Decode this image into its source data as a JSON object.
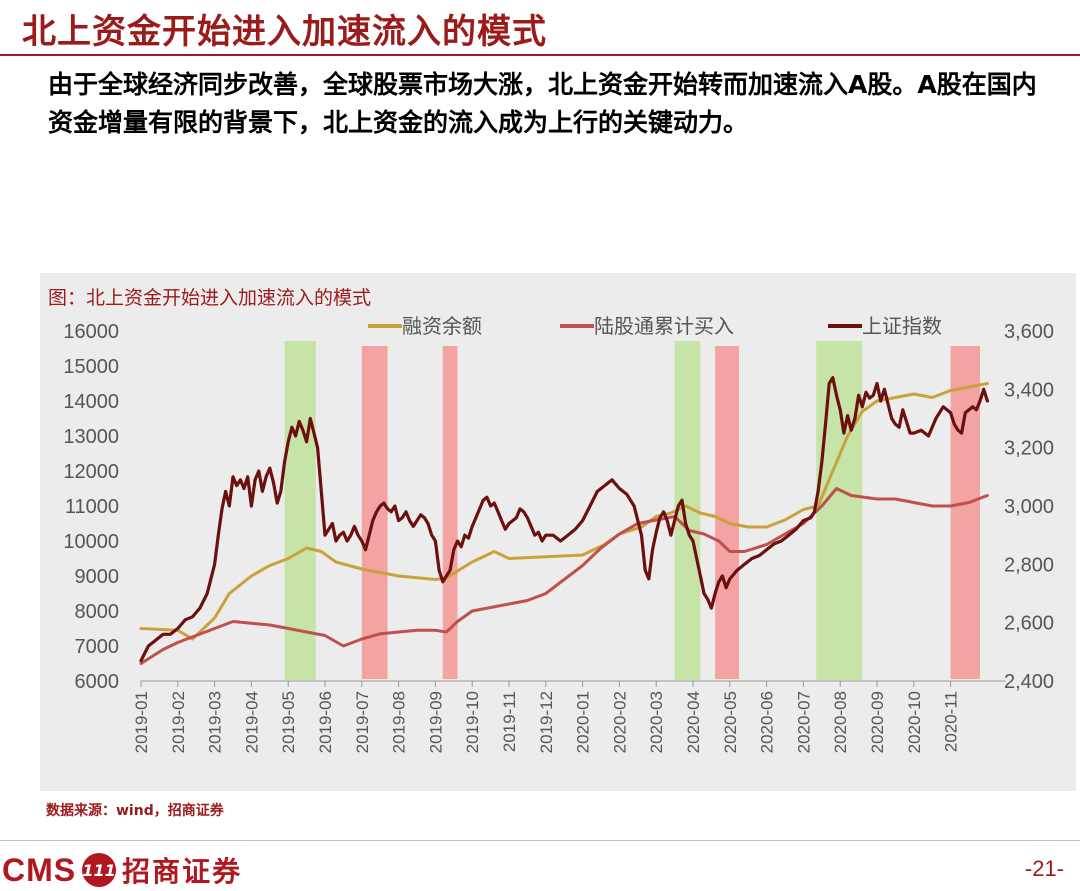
{
  "slide": {
    "title": "北上资金开始进入加速流入的模式",
    "subtitle": "由于全球经济同步改善，全球股票市场大涨，北上资金开始转而加速流入A股。A股在国内资金增量有限的背景下，北上资金的流入成为上行的关键动力。",
    "source": "数据来源：wind，招商证券",
    "page_number": "-21-",
    "logo_text": "CMS",
    "logo_badge": "111",
    "logo_cn": "招商证券"
  },
  "chart_data": {
    "type": "line",
    "title": "图：北上资金开始进入加速流入的模式",
    "x_categories": [
      "2019-01",
      "2019-02",
      "2019-03",
      "2019-04",
      "2019-05",
      "2019-06",
      "2019-07",
      "2019-08",
      "2019-09",
      "2019-10",
      "2019-11",
      "2019-12",
      "2020-01",
      "2020-02",
      "2020-03",
      "2020-04",
      "2020-05",
      "2020-06",
      "2020-07",
      "2020-08",
      "2020-09",
      "2020-10",
      "2020-11"
    ],
    "y_left": {
      "min": 6000,
      "max": 16000,
      "ticks": [
        "6000",
        "7000",
        "8000",
        "9000",
        "10000",
        "11000",
        "12000",
        "13000",
        "14000",
        "15000",
        "16000"
      ]
    },
    "y_right": {
      "min": 2400,
      "max": 3600,
      "ticks": [
        "2,400",
        "2,600",
        "2,800",
        "3,000",
        "3,200",
        "3,400",
        "3,600"
      ]
    },
    "grid": false,
    "legend_position": "top",
    "colors": {
      "margin": "#c9a23a",
      "northbound": "#c0504d",
      "index": "#6b0f0f",
      "green_band": "#c6e3a8",
      "red_band": "#f4a3a3",
      "background": "#ececec"
    },
    "highlight_bands": [
      {
        "color": "green",
        "from": 3.9,
        "to": 4.75
      },
      {
        "color": "red",
        "from": 6.0,
        "to": 6.7
      },
      {
        "color": "red",
        "from": 8.2,
        "to": 8.6
      },
      {
        "color": "green",
        "from": 14.5,
        "to": 15.2
      },
      {
        "color": "red",
        "from": 15.6,
        "to": 16.25
      },
      {
        "color": "green",
        "from": 18.35,
        "to": 19.6
      },
      {
        "color": "red",
        "from": 22.0,
        "to": 22.8
      }
    ],
    "series": [
      {
        "name": "融资余额",
        "axis": "left",
        "points": [
          [
            0.0,
            7500
          ],
          [
            1.0,
            7450
          ],
          [
            1.4,
            7200
          ],
          [
            2.0,
            7800
          ],
          [
            2.4,
            8500
          ],
          [
            3.0,
            9000
          ],
          [
            3.5,
            9300
          ],
          [
            4.0,
            9500
          ],
          [
            4.5,
            9800
          ],
          [
            4.9,
            9700
          ],
          [
            5.3,
            9400
          ],
          [
            6.0,
            9200
          ],
          [
            7.0,
            9000
          ],
          [
            8.0,
            8900
          ],
          [
            8.3,
            8950
          ],
          [
            9.0,
            9400
          ],
          [
            9.6,
            9700
          ],
          [
            10.0,
            9500
          ],
          [
            11.0,
            9550
          ],
          [
            12.0,
            9600
          ],
          [
            12.6,
            9900
          ],
          [
            13.0,
            10200
          ],
          [
            13.6,
            10400
          ],
          [
            14.0,
            10700
          ],
          [
            14.4,
            10800
          ],
          [
            14.8,
            11000
          ],
          [
            15.2,
            10800
          ],
          [
            15.6,
            10700
          ],
          [
            16.0,
            10500
          ],
          [
            16.5,
            10400
          ],
          [
            17.0,
            10400
          ],
          [
            17.5,
            10600
          ],
          [
            18.0,
            10900
          ],
          [
            18.4,
            11000
          ],
          [
            18.8,
            12000
          ],
          [
            19.2,
            13000
          ],
          [
            19.6,
            13700
          ],
          [
            20.0,
            14000
          ],
          [
            20.5,
            14100
          ],
          [
            21.0,
            14200
          ],
          [
            21.5,
            14100
          ],
          [
            22.0,
            14300
          ],
          [
            22.5,
            14400
          ],
          [
            23.0,
            14500
          ]
        ]
      },
      {
        "name": "陆股通累计买入",
        "axis": "left",
        "points": [
          [
            0.0,
            6500
          ],
          [
            0.6,
            6900
          ],
          [
            1.0,
            7100
          ],
          [
            1.5,
            7300
          ],
          [
            2.0,
            7500
          ],
          [
            2.5,
            7700
          ],
          [
            3.0,
            7650
          ],
          [
            3.5,
            7600
          ],
          [
            4.0,
            7500
          ],
          [
            4.5,
            7400
          ],
          [
            5.0,
            7300
          ],
          [
            5.5,
            7000
          ],
          [
            6.0,
            7200
          ],
          [
            6.5,
            7350
          ],
          [
            7.0,
            7400
          ],
          [
            7.5,
            7450
          ],
          [
            8.0,
            7450
          ],
          [
            8.3,
            7400
          ],
          [
            8.6,
            7700
          ],
          [
            9.0,
            8000
          ],
          [
            10.0,
            8200
          ],
          [
            10.5,
            8300
          ],
          [
            11.0,
            8500
          ],
          [
            11.5,
            8900
          ],
          [
            12.0,
            9300
          ],
          [
            12.5,
            9800
          ],
          [
            13.0,
            10200
          ],
          [
            13.5,
            10500
          ],
          [
            14.0,
            10600
          ],
          [
            14.5,
            10700
          ],
          [
            14.9,
            10300
          ],
          [
            15.3,
            10200
          ],
          [
            15.7,
            10000
          ],
          [
            16.0,
            9700
          ],
          [
            16.4,
            9700
          ],
          [
            17.0,
            9900
          ],
          [
            17.5,
            10200
          ],
          [
            18.0,
            10500
          ],
          [
            18.5,
            11000
          ],
          [
            18.9,
            11500
          ],
          [
            19.3,
            11300
          ],
          [
            20.0,
            11200
          ],
          [
            20.5,
            11200
          ],
          [
            21.0,
            11100
          ],
          [
            21.5,
            11000
          ],
          [
            22.0,
            11000
          ],
          [
            22.5,
            11100
          ],
          [
            23.0,
            11300
          ]
        ]
      },
      {
        "name": "上证指数",
        "axis": "right",
        "points": [
          [
            0.0,
            2470
          ],
          [
            0.2,
            2520
          ],
          [
            0.4,
            2540
          ],
          [
            0.6,
            2560
          ],
          [
            0.8,
            2560
          ],
          [
            1.0,
            2580
          ],
          [
            1.2,
            2610
          ],
          [
            1.4,
            2620
          ],
          [
            1.6,
            2650
          ],
          [
            1.8,
            2700
          ],
          [
            2.0,
            2800
          ],
          [
            2.1,
            2900
          ],
          [
            2.2,
            2990
          ],
          [
            2.3,
            3050
          ],
          [
            2.4,
            3000
          ],
          [
            2.5,
            3100
          ],
          [
            2.6,
            3070
          ],
          [
            2.7,
            3090
          ],
          [
            2.8,
            3060
          ],
          [
            2.9,
            3100
          ],
          [
            3.0,
            3000
          ],
          [
            3.1,
            3090
          ],
          [
            3.2,
            3120
          ],
          [
            3.3,
            3050
          ],
          [
            3.4,
            3100
          ],
          [
            3.5,
            3130
          ],
          [
            3.6,
            3080
          ],
          [
            3.7,
            3010
          ],
          [
            3.8,
            3050
          ],
          [
            3.9,
            3150
          ],
          [
            4.0,
            3220
          ],
          [
            4.1,
            3270
          ],
          [
            4.2,
            3240
          ],
          [
            4.3,
            3290
          ],
          [
            4.4,
            3260
          ],
          [
            4.5,
            3220
          ],
          [
            4.6,
            3300
          ],
          [
            4.7,
            3250
          ],
          [
            4.8,
            3200
          ],
          [
            4.9,
            3050
          ],
          [
            5.0,
            2900
          ],
          [
            5.1,
            2920
          ],
          [
            5.2,
            2940
          ],
          [
            5.3,
            2880
          ],
          [
            5.4,
            2900
          ],
          [
            5.5,
            2910
          ],
          [
            5.6,
            2880
          ],
          [
            5.7,
            2900
          ],
          [
            5.8,
            2930
          ],
          [
            5.9,
            2900
          ],
          [
            6.0,
            2880
          ],
          [
            6.1,
            2850
          ],
          [
            6.2,
            2900
          ],
          [
            6.3,
            2950
          ],
          [
            6.4,
            2980
          ],
          [
            6.5,
            3000
          ],
          [
            6.6,
            3010
          ],
          [
            6.7,
            2990
          ],
          [
            6.8,
            2980
          ],
          [
            6.9,
            3000
          ],
          [
            7.0,
            2950
          ],
          [
            7.1,
            2960
          ],
          [
            7.2,
            2980
          ],
          [
            7.3,
            2950
          ],
          [
            7.4,
            2930
          ],
          [
            7.5,
            2950
          ],
          [
            7.6,
            2970
          ],
          [
            7.7,
            2960
          ],
          [
            7.8,
            2940
          ],
          [
            7.9,
            2900
          ],
          [
            8.0,
            2880
          ],
          [
            8.1,
            2780
          ],
          [
            8.2,
            2740
          ],
          [
            8.3,
            2760
          ],
          [
            8.4,
            2780
          ],
          [
            8.5,
            2850
          ],
          [
            8.6,
            2880
          ],
          [
            8.7,
            2860
          ],
          [
            8.8,
            2900
          ],
          [
            8.9,
            2890
          ],
          [
            9.0,
            2930
          ],
          [
            9.1,
            2960
          ],
          [
            9.2,
            2990
          ],
          [
            9.3,
            3020
          ],
          [
            9.4,
            3030
          ],
          [
            9.5,
            3000
          ],
          [
            9.6,
            3010
          ],
          [
            9.7,
            2980
          ],
          [
            9.8,
            2950
          ],
          [
            9.9,
            2920
          ],
          [
            10.0,
            2940
          ],
          [
            10.1,
            2950
          ],
          [
            10.2,
            2960
          ],
          [
            10.3,
            2990
          ],
          [
            10.4,
            2980
          ],
          [
            10.5,
            2960
          ],
          [
            10.6,
            2930
          ],
          [
            10.7,
            2900
          ],
          [
            10.8,
            2910
          ],
          [
            10.9,
            2880
          ],
          [
            11.0,
            2900
          ],
          [
            11.2,
            2900
          ],
          [
            11.4,
            2880
          ],
          [
            11.6,
            2900
          ],
          [
            11.8,
            2920
          ],
          [
            12.0,
            2950
          ],
          [
            12.2,
            3000
          ],
          [
            12.4,
            3050
          ],
          [
            12.6,
            3070
          ],
          [
            12.8,
            3090
          ],
          [
            13.0,
            3060
          ],
          [
            13.2,
            3040
          ],
          [
            13.4,
            3000
          ],
          [
            13.5,
            2950
          ],
          [
            13.6,
            2900
          ],
          [
            13.7,
            2780
          ],
          [
            13.8,
            2750
          ],
          [
            13.9,
            2850
          ],
          [
            14.0,
            2910
          ],
          [
            14.1,
            2960
          ],
          [
            14.2,
            2980
          ],
          [
            14.3,
            2950
          ],
          [
            14.4,
            2900
          ],
          [
            14.5,
            2950
          ],
          [
            14.6,
            3000
          ],
          [
            14.7,
            3020
          ],
          [
            14.8,
            2940
          ],
          [
            14.9,
            2900
          ],
          [
            15.0,
            2880
          ],
          [
            15.1,
            2820
          ],
          [
            15.2,
            2760
          ],
          [
            15.3,
            2700
          ],
          [
            15.4,
            2680
          ],
          [
            15.5,
            2650
          ],
          [
            15.6,
            2700
          ],
          [
            15.7,
            2740
          ],
          [
            15.8,
            2760
          ],
          [
            15.9,
            2720
          ],
          [
            16.0,
            2750
          ],
          [
            16.2,
            2780
          ],
          [
            16.4,
            2800
          ],
          [
            16.6,
            2820
          ],
          [
            16.8,
            2830
          ],
          [
            17.0,
            2850
          ],
          [
            17.2,
            2870
          ],
          [
            17.4,
            2880
          ],
          [
            17.6,
            2900
          ],
          [
            17.8,
            2920
          ],
          [
            18.0,
            2950
          ],
          [
            18.2,
            2960
          ],
          [
            18.3,
            2980
          ],
          [
            18.4,
            3050
          ],
          [
            18.5,
            3150
          ],
          [
            18.6,
            3280
          ],
          [
            18.7,
            3420
          ],
          [
            18.8,
            3440
          ],
          [
            18.9,
            3380
          ],
          [
            19.0,
            3330
          ],
          [
            19.1,
            3250
          ],
          [
            19.2,
            3310
          ],
          [
            19.3,
            3260
          ],
          [
            19.4,
            3300
          ],
          [
            19.5,
            3380
          ],
          [
            19.6,
            3340
          ],
          [
            19.7,
            3390
          ],
          [
            19.8,
            3370
          ],
          [
            19.9,
            3380
          ],
          [
            20.0,
            3420
          ],
          [
            20.1,
            3360
          ],
          [
            20.2,
            3400
          ],
          [
            20.3,
            3350
          ],
          [
            20.4,
            3300
          ],
          [
            20.5,
            3280
          ],
          [
            20.6,
            3270
          ],
          [
            20.7,
            3330
          ],
          [
            20.8,
            3290
          ],
          [
            20.9,
            3250
          ],
          [
            21.0,
            3250
          ],
          [
            21.2,
            3260
          ],
          [
            21.4,
            3240
          ],
          [
            21.6,
            3300
          ],
          [
            21.8,
            3340
          ],
          [
            22.0,
            3320
          ],
          [
            22.1,
            3280
          ],
          [
            22.2,
            3260
          ],
          [
            22.3,
            3250
          ],
          [
            22.4,
            3320
          ],
          [
            22.6,
            3340
          ],
          [
            22.7,
            3330
          ],
          [
            22.8,
            3360
          ],
          [
            22.9,
            3400
          ],
          [
            23.0,
            3360
          ]
        ]
      }
    ]
  }
}
